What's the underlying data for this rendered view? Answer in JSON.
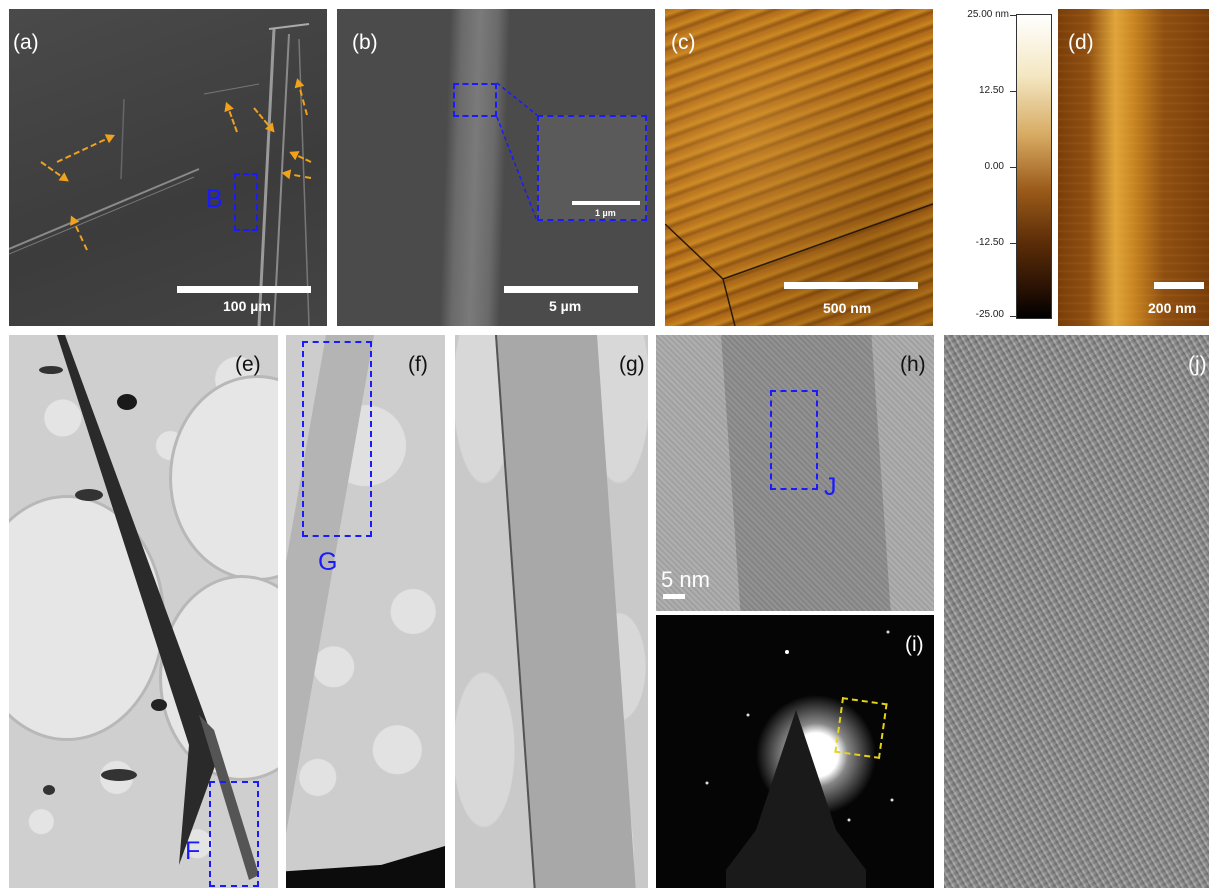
{
  "panels": {
    "a": {
      "label": "(a)",
      "scale": "100 µm",
      "box": "B"
    },
    "b": {
      "label": "(b)",
      "scale": "5 µm",
      "inset_scale": "1 µm"
    },
    "c": {
      "label": "(c)",
      "scale": "500 nm"
    },
    "d": {
      "label": "(d)",
      "scale": "200 nm"
    },
    "e": {
      "label": "(e)",
      "box": "F"
    },
    "f": {
      "label": "(f)",
      "box": "G"
    },
    "g": {
      "label": "(g)"
    },
    "h": {
      "label": "(h)",
      "scale": "5 nm",
      "box": "J"
    },
    "i": {
      "label": "(i)"
    },
    "j": {
      "label": "(j)"
    }
  },
  "colorbar": {
    "ticks": [
      "25.00 nm",
      "12.50",
      "0.00",
      "-12.50",
      "-25.00"
    ]
  },
  "colors": {
    "box_blue": "#1a1aff",
    "arrow_orange": "#f0a21c",
    "sad_box_yellow": "#e6d21a"
  }
}
